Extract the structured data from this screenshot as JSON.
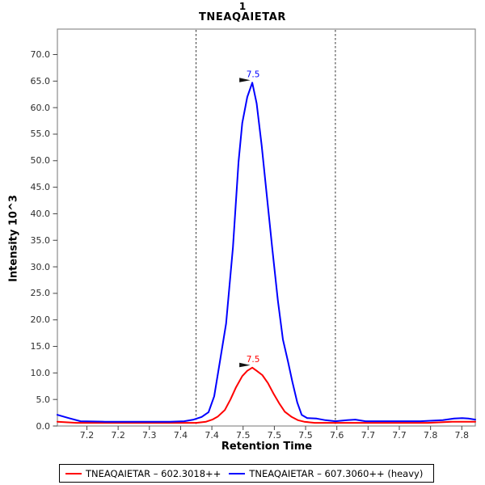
{
  "title": {
    "line1": "1",
    "line2": "TNEAQAIETAR"
  },
  "y_axis": {
    "label": "Intensity 10^3",
    "tick_labels": [
      "0.0",
      "5.0",
      "10.0",
      "15.0",
      "20.0",
      "25.0",
      "30.0",
      "35.0",
      "40.0",
      "45.0",
      "50.0",
      "55.0",
      "60.0",
      "65.0",
      "70.0"
    ]
  },
  "x_axis": {
    "label": "Retention Time",
    "tick_labels": [
      "7.2",
      "7.2",
      "7.3",
      "7.4",
      "7.4",
      "7.5",
      "7.5",
      "7.5",
      "7.6",
      "7.7",
      "7.7",
      "7.8",
      "7.8"
    ]
  },
  "legend": {
    "items": [
      {
        "label": "TNEAQAIETAR – 602.3018++",
        "color": "#ff0000"
      },
      {
        "label": "TNEAQAIETAR – 607.3060++ (heavy)",
        "color": "#0000ff"
      }
    ]
  },
  "chart_data": {
    "type": "line",
    "title": "1 TNEAQAIETAR",
    "xlabel": "Retention Time",
    "ylabel": "Intensity 10^3",
    "xlim": [
      7.153,
      7.822
    ],
    "ylim": [
      0,
      74.8
    ],
    "grid": false,
    "legend_position": "bottom",
    "integration_boundaries": [
      7.375,
      7.598
    ],
    "series": [
      {
        "name": "TNEAQAIETAR – 602.3018++",
        "color": "#ff0000",
        "peak_annotation": "7.5",
        "peak": [
          7.465,
          11.0
        ],
        "points": [
          [
            7.153,
            0.8
          ],
          [
            7.184,
            0.6
          ],
          [
            7.242,
            0.6
          ],
          [
            7.32,
            0.6
          ],
          [
            7.375,
            0.6
          ],
          [
            7.391,
            0.8
          ],
          [
            7.401,
            1.2
          ],
          [
            7.41,
            1.8
          ],
          [
            7.421,
            3.0
          ],
          [
            7.43,
            5.0
          ],
          [
            7.439,
            7.3
          ],
          [
            7.449,
            9.4
          ],
          [
            7.457,
            10.4
          ],
          [
            7.465,
            11.0
          ],
          [
            7.472,
            10.4
          ],
          [
            7.481,
            9.6
          ],
          [
            7.49,
            8.1
          ],
          [
            7.499,
            6.1
          ],
          [
            7.508,
            4.3
          ],
          [
            7.517,
            2.7
          ],
          [
            7.528,
            1.7
          ],
          [
            7.538,
            1.1
          ],
          [
            7.548,
            0.8
          ],
          [
            7.565,
            0.6
          ],
          [
            7.617,
            0.6
          ],
          [
            7.682,
            0.6
          ],
          [
            7.746,
            0.6
          ],
          [
            7.785,
            0.8
          ],
          [
            7.822,
            0.8
          ]
        ]
      },
      {
        "name": "TNEAQAIETAR – 607.3060++ (heavy)",
        "color": "#0000ff",
        "peak_annotation": "7.5",
        "peak": [
          7.465,
          64.7
        ],
        "points": [
          [
            7.153,
            2.1
          ],
          [
            7.171,
            1.5
          ],
          [
            7.19,
            0.9
          ],
          [
            7.229,
            0.8
          ],
          [
            7.281,
            0.8
          ],
          [
            7.333,
            0.8
          ],
          [
            7.356,
            0.9
          ],
          [
            7.371,
            1.2
          ],
          [
            7.384,
            1.7
          ],
          [
            7.395,
            2.6
          ],
          [
            7.404,
            5.6
          ],
          [
            7.413,
            12.0
          ],
          [
            7.423,
            19.3
          ],
          [
            7.434,
            33.7
          ],
          [
            7.443,
            49.8
          ],
          [
            7.449,
            57.1
          ],
          [
            7.457,
            62.0
          ],
          [
            7.465,
            64.7
          ],
          [
            7.472,
            60.8
          ],
          [
            7.48,
            52.9
          ],
          [
            7.488,
            43.7
          ],
          [
            7.497,
            33.5
          ],
          [
            7.506,
            23.6
          ],
          [
            7.514,
            16.3
          ],
          [
            7.522,
            12.2
          ],
          [
            7.529,
            8.4
          ],
          [
            7.537,
            4.4
          ],
          [
            7.544,
            2.1
          ],
          [
            7.553,
            1.5
          ],
          [
            7.568,
            1.4
          ],
          [
            7.582,
            1.1
          ],
          [
            7.598,
            0.9
          ],
          [
            7.617,
            1.1
          ],
          [
            7.63,
            1.2
          ],
          [
            7.646,
            0.9
          ],
          [
            7.682,
            0.9
          ],
          [
            7.734,
            0.9
          ],
          [
            7.77,
            1.1
          ],
          [
            7.788,
            1.4
          ],
          [
            7.801,
            1.5
          ],
          [
            7.811,
            1.4
          ],
          [
            7.822,
            1.2
          ]
        ]
      }
    ],
    "annotation_arrow_color": "#111111",
    "frame_color": "#8c8c8c",
    "tick_color": "#444444",
    "boundary_line_color": "#333333"
  }
}
